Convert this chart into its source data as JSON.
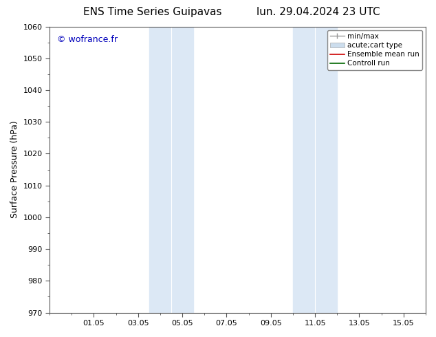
{
  "title_left": "ENS Time Series Guipavas",
  "title_right": "lun. 29.04.2024 23 UTC",
  "ylabel": "Surface Pressure (hPa)",
  "ylim": [
    970,
    1060
  ],
  "yticks": [
    970,
    980,
    990,
    1000,
    1010,
    1020,
    1030,
    1040,
    1050,
    1060
  ],
  "xtick_labels": [
    "01.05",
    "03.05",
    "05.05",
    "07.05",
    "09.05",
    "11.05",
    "13.05",
    "15.05"
  ],
  "xtick_positions": [
    2,
    4,
    6,
    8,
    10,
    12,
    14,
    16
  ],
  "xlim": [
    0,
    17
  ],
  "shaded_regions": [
    {
      "x_start": 4.5,
      "x_end": 5.5
    },
    {
      "x_start": 5.5,
      "x_end": 6.5
    },
    {
      "x_start": 11.0,
      "x_end": 12.0
    },
    {
      "x_start": 12.0,
      "x_end": 13.0
    }
  ],
  "watermark_text": "© wofrance.fr",
  "watermark_color": "#0000bb",
  "bg_color": "#ffffff",
  "shade_color": "#dce8f5",
  "grid_color": "#cccccc",
  "spine_color": "#555555",
  "title_fontsize": 11,
  "axis_label_fontsize": 9,
  "tick_fontsize": 8,
  "watermark_fontsize": 9,
  "legend_fontsize": 7.5
}
